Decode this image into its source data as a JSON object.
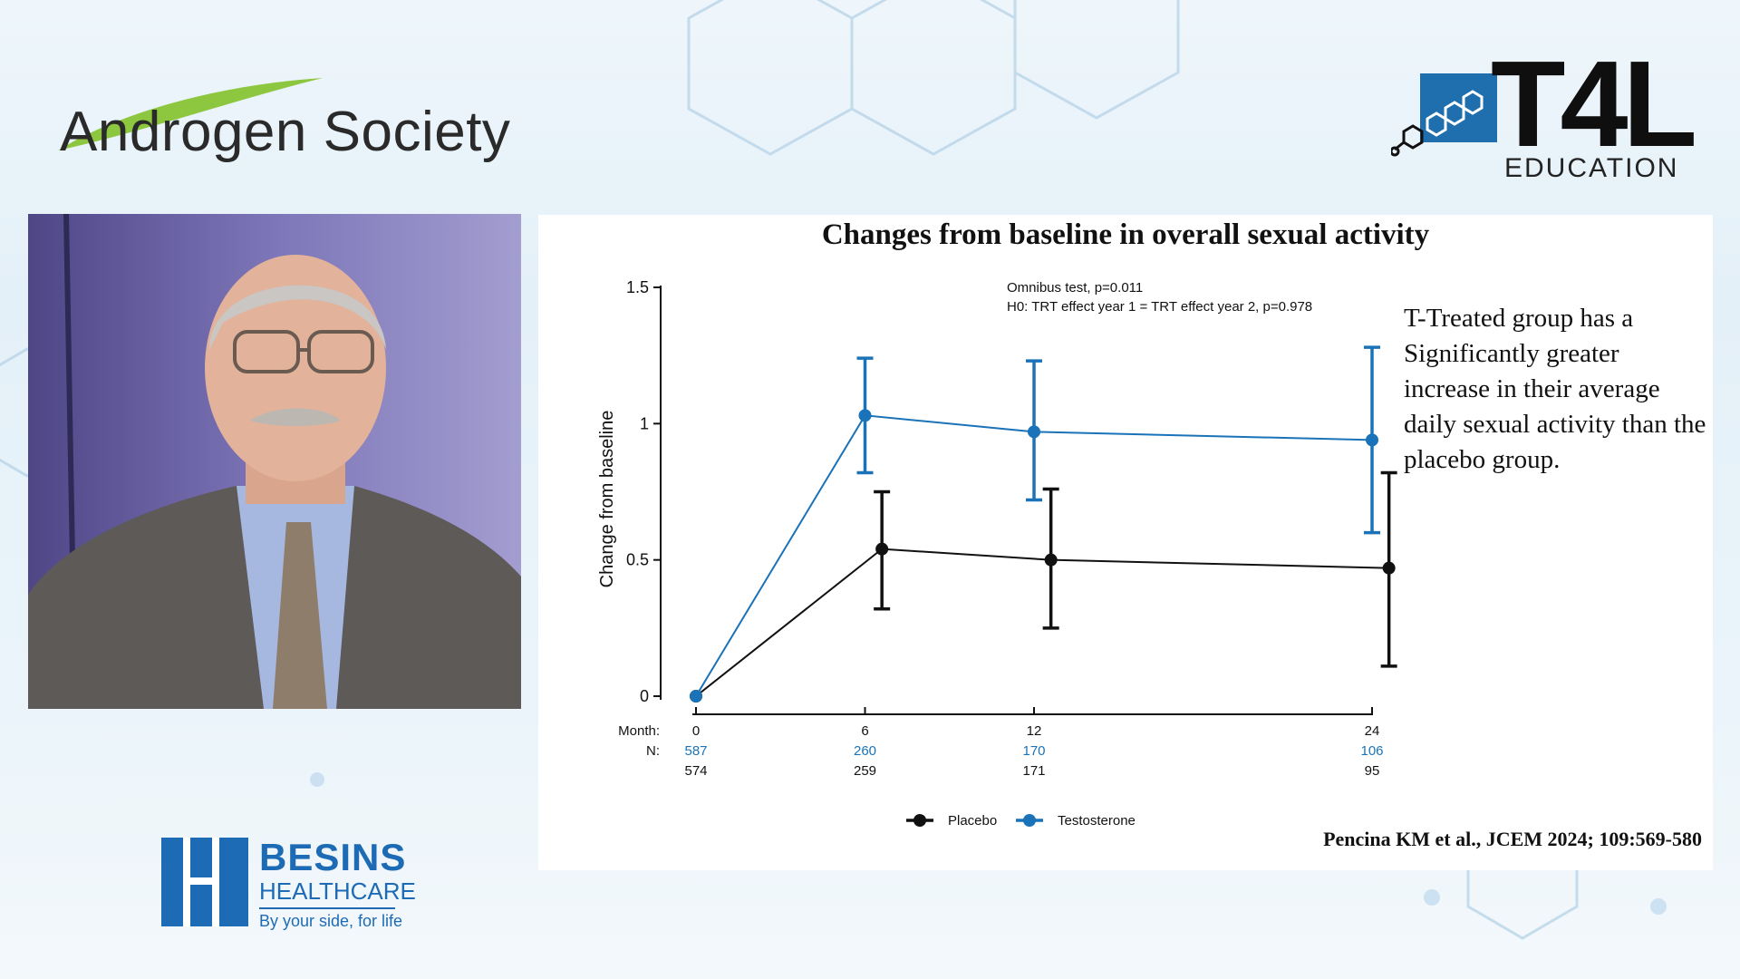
{
  "brand": {
    "left_logo_text": "Androgen Society",
    "right_logo_big": "T4L",
    "right_logo_sub": "EDUCATION",
    "bottom_logo_line1": "BESINS",
    "bottom_logo_line2": "HEALTHCARE",
    "bottom_logo_tagline": "By your side, for life"
  },
  "colors": {
    "accent_green": "#8dc63f",
    "testosterone_blue": "#1a73b8",
    "placebo_black": "#111111",
    "besins_blue": "#1e6bb5"
  },
  "slide": {
    "title": "Changes from baseline in overall sexual activity",
    "side_note": "T-Treated group  has a Significantly greater increase in their average daily sexual activity than the placebo group.",
    "citation": "Pencina KM et al., JCEM 2024; 109:569-580"
  },
  "chart_data": {
    "type": "line",
    "title": "Changes from baseline in overall sexual activity",
    "ylabel": "Change from baseline",
    "xlabel": "Month:",
    "ylim": [
      0,
      1.5
    ],
    "yticks": [
      0,
      0.5,
      1,
      1.5
    ],
    "ytick_labels": [
      "0",
      "0.5",
      "1",
      "1.5"
    ],
    "x": [
      0,
      6,
      12,
      24
    ],
    "xtick_labels": [
      "0",
      "6",
      "12",
      "24"
    ],
    "annotations": [
      "Omnibus test, p=0.011",
      "H0: TRT effect year 1 = TRT effect year 2, p=0.978"
    ],
    "n_label": "N:",
    "legend_position": "bottom-center",
    "series": [
      {
        "name": "Placebo",
        "color": "#111111",
        "x_offset_months": 0.6,
        "values": [
          0,
          0.54,
          0.5,
          0.47
        ],
        "ci_low": [
          0,
          0.32,
          0.25,
          0.11
        ],
        "ci_high": [
          0,
          0.75,
          0.76,
          0.82
        ],
        "n": [
          "574",
          "259",
          "171",
          "95"
        ]
      },
      {
        "name": "Testosterone",
        "color": "#1a73b8",
        "x_offset_months": 0,
        "values": [
          0,
          1.03,
          0.97,
          0.94
        ],
        "ci_low": [
          0,
          0.82,
          0.72,
          0.6
        ],
        "ci_high": [
          0,
          1.24,
          1.23,
          1.28
        ],
        "n": [
          "587",
          "260",
          "170",
          "106"
        ]
      }
    ]
  }
}
